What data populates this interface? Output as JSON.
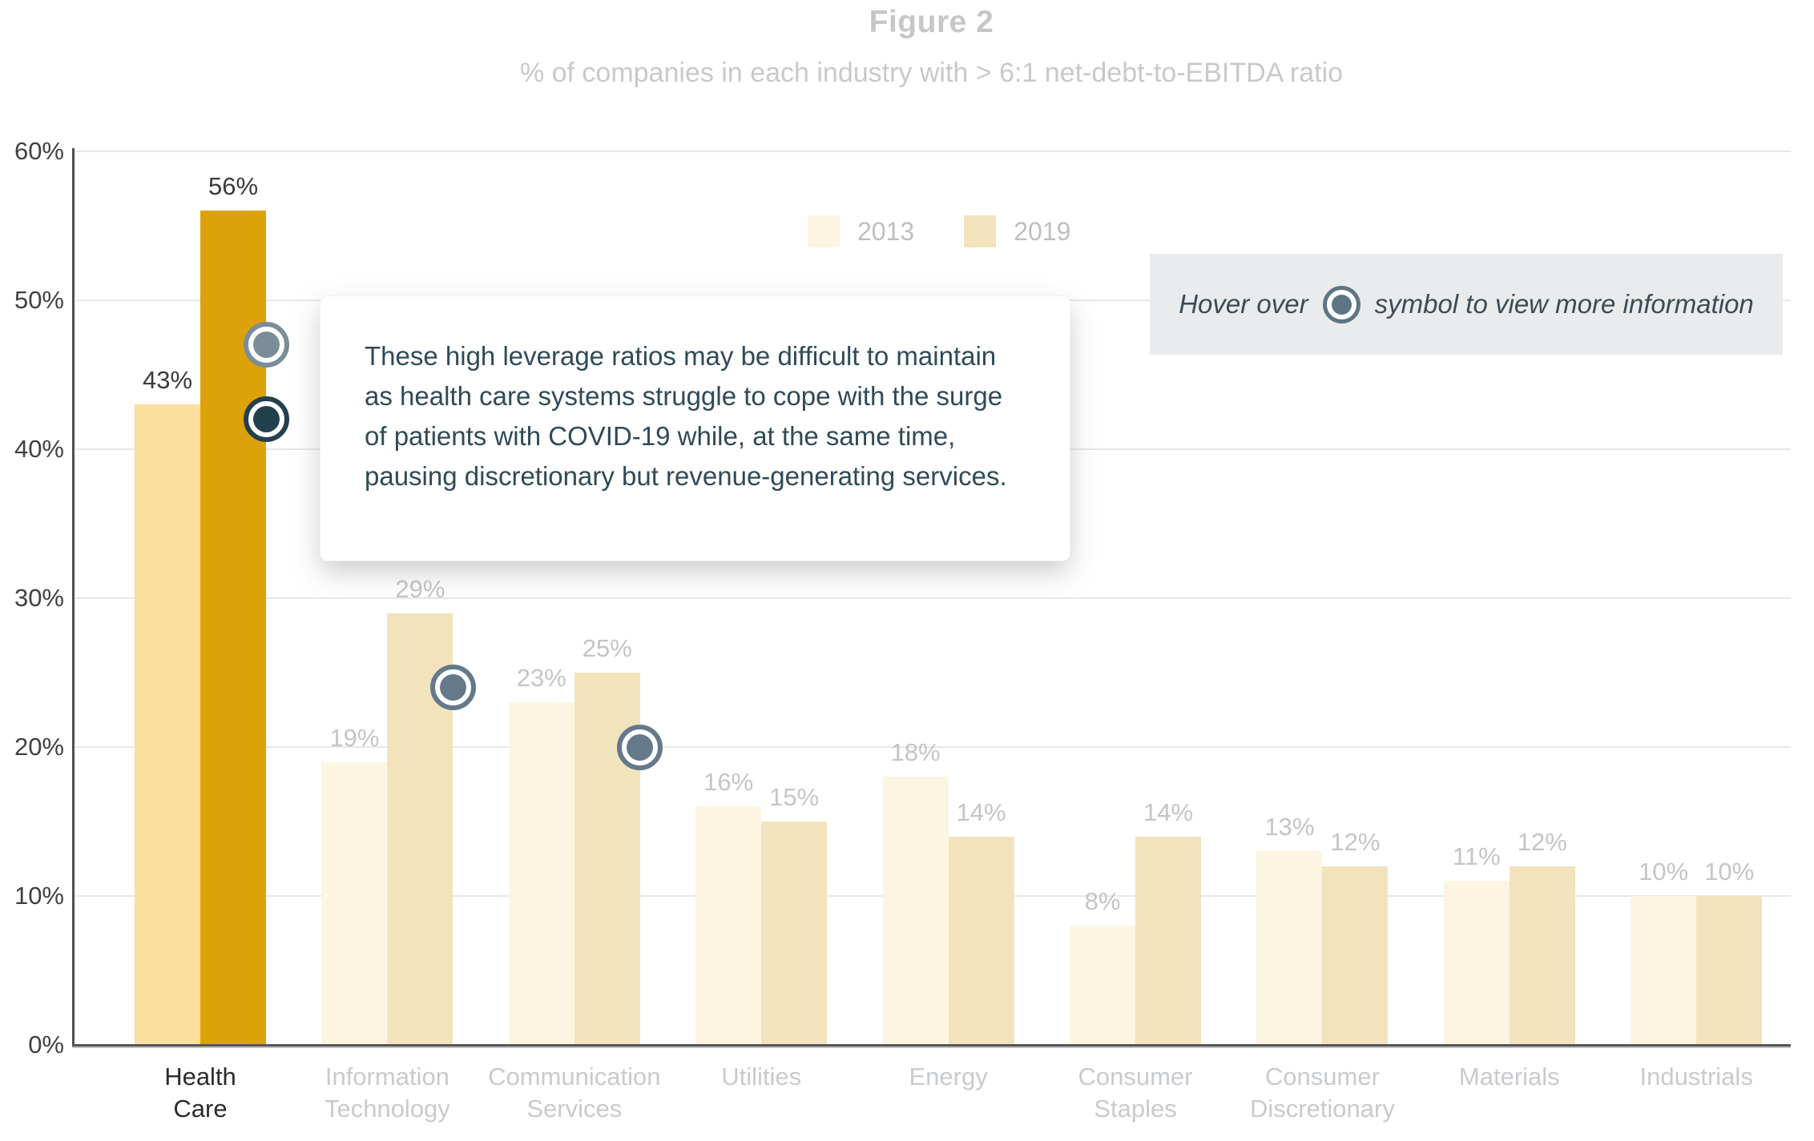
{
  "title": "Figure 2",
  "subtitle": "% of companies in each industry with > 6:1 net-debt-to-EBITDA ratio",
  "legend": {
    "items": [
      {
        "label": "2013",
        "color": "#FDF5E2"
      },
      {
        "label": "2019",
        "color": "#F3E3BD"
      }
    ]
  },
  "hover_note": {
    "prefix": "Hover over",
    "suffix": "symbol to view more information",
    "symbol": "info-dot-icon"
  },
  "tooltip": {
    "text": "These high leverage ratios may be difficult to maintain as health care systems struggle to cope with the surge of patients with COVID-19 while, at the same time, pausing discretionary but revenue-generating services."
  },
  "chart_data": {
    "type": "bar",
    "title": "Figure 2",
    "subtitle": "% of companies in each industry with > 6:1 net-debt-to-EBITDA ratio",
    "categories": [
      "Health Care",
      "Information Technology",
      "Communication Services",
      "Utilities",
      "Energy",
      "Consumer Staples",
      "Consumer Discretionary",
      "Materials",
      "Industrials"
    ],
    "series": [
      {
        "name": "2013",
        "values": [
          43,
          19,
          23,
          16,
          18,
          8,
          13,
          11,
          10
        ]
      },
      {
        "name": "2019",
        "values": [
          56,
          29,
          25,
          15,
          14,
          14,
          12,
          12,
          10
        ]
      }
    ],
    "data_label_format": "{v}%",
    "ylim": [
      0,
      60
    ],
    "ytick_labels": [
      "0%",
      "10%",
      "20%",
      "30%",
      "40%",
      "50%",
      "60%"
    ],
    "grid": true,
    "legend_position": "top-center",
    "highlighted_category": "Health Care",
    "colors": {
      "series_2013": "#FDF5E2",
      "series_2019": "#F3E3BD",
      "highlight_2013": "#FADF9F",
      "highlight_2019": "#DDA10A",
      "grid": "#E8E8E8",
      "axis": "#4E4F51",
      "value_label": "#C3C5C7",
      "value_label_highlight": "#3A3A3A",
      "category_label": "#C8CBCE",
      "category_label_highlight": "#2B2B2B",
      "marker_default": "#64798A",
      "marker_light": "#7A8D99",
      "marker_active": "#23404F"
    },
    "markers": [
      {
        "category": "Health Care",
        "series": "2019",
        "value_at": 47,
        "style": "light"
      },
      {
        "category": "Health Care",
        "series": "2019",
        "value_at": 42,
        "style": "active"
      },
      {
        "category": "Information Technology",
        "series": "2019",
        "value_at": 24,
        "style": "default"
      },
      {
        "category": "Communication Services",
        "series": "2019",
        "value_at": 20,
        "style": "default"
      }
    ]
  }
}
